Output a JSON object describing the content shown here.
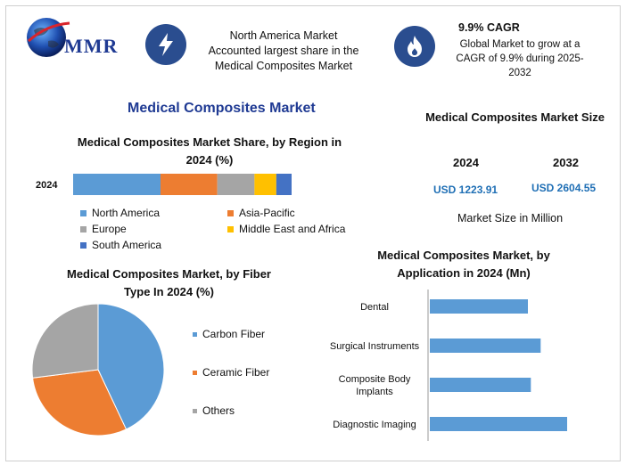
{
  "brand": {
    "name": "MMR"
  },
  "top": {
    "share_text": [
      "North America Market",
      "Accounted largest share in the",
      "Medical Composites Market"
    ],
    "cagr_title": "9.9% CAGR",
    "cagr_text": "Global Market to grow at a CAGR of 9.9% during 2025-2032"
  },
  "main_title": "Medical Composites Market",
  "colors": {
    "north_america": "#5b9bd5",
    "asia_pacific": "#ed7d31",
    "europe": "#a5a5a5",
    "mea": "#ffc000",
    "south_america": "#4472c4",
    "title_blue": "#1f3a93",
    "value_blue": "#1f6fb5",
    "icon_bg": "#2a4d8f"
  },
  "market_size": {
    "title": "Medical Composites Market Size",
    "year1": "2024",
    "year2": "2032",
    "value1": "USD 1223.91",
    "value2": "USD 2604.55",
    "note": "Market Size in Million"
  },
  "chart_data": [
    {
      "type": "bar",
      "orientation": "horizontal-stacked",
      "title": "Medical Composites Market Share, by Region in 2024 (%)",
      "categories": [
        "2024"
      ],
      "series": [
        {
          "name": "North America",
          "values": [
            40
          ]
        },
        {
          "name": "Asia-Pacific",
          "values": [
            26
          ]
        },
        {
          "name": "Europe",
          "values": [
            17
          ]
        },
        {
          "name": "Middle East and Africa",
          "values": [
            10
          ]
        },
        {
          "name": "South America",
          "values": [
            7
          ]
        }
      ],
      "legend": "bottom"
    },
    {
      "type": "pie",
      "title": "Medical Composites Market, by Fiber Type In 2024 (%)",
      "categories": [
        "Carbon Fiber",
        "Ceramic Fiber",
        "Others"
      ],
      "values": [
        43,
        30,
        27
      ],
      "legend": "right"
    },
    {
      "type": "bar",
      "orientation": "horizontal",
      "title": "Medical Composites Market, by Application in 2024 (Mn)",
      "categories": [
        "Dental",
        "Surgical Instruments",
        "Composite Body Implants",
        "Diagnostic Imaging"
      ],
      "values": [
        100,
        113,
        103,
        140
      ]
    }
  ]
}
